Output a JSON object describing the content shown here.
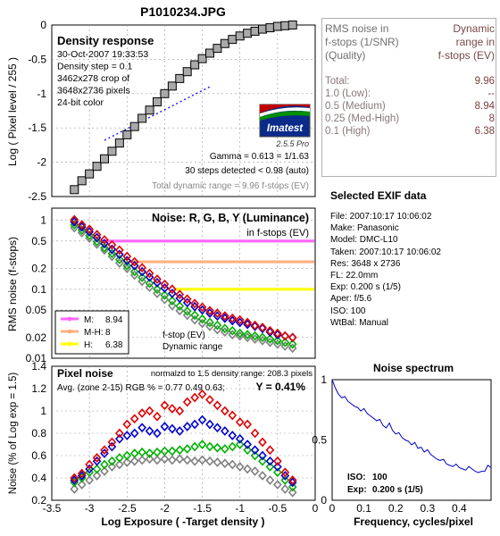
{
  "file_title": "P1010234.JPG",
  "colors": {
    "gray_marker": "#a9a9a9",
    "dotted_line": "#2020ff",
    "noise_r": "#e00000",
    "noise_g": "#00b000",
    "noise_b": "#0000d0",
    "noise_y": "#808080",
    "band_m": "#ff66ff",
    "band_mh": "#ffb080",
    "band_h": "#ffff00",
    "spectrum_line": "#0000c0",
    "title_color": "#800080",
    "brown_text": "#7a4040"
  },
  "rms_table": {
    "header_left": [
      "RMS noise in",
      "f-stops (1/SNR)",
      "(Quality)"
    ],
    "header_right": [
      "Dynamic",
      "range in",
      "f-stops (EV)"
    ],
    "rows": [
      {
        "label": "Total:",
        "value": "9.96"
      },
      {
        "label": "1.0   (Low):",
        "value": "--"
      },
      {
        "label": "0.5   (Medium)",
        "value": "8.94"
      },
      {
        "label": "0.25 (Med-High)",
        "value": "8"
      },
      {
        "label": "0.1   (High)",
        "value": "6.38"
      }
    ]
  },
  "exif": {
    "title": "Selected EXIF data",
    "lines": [
      "File:  2007:10:17 10:06:02",
      "Make:  Panasonic",
      "Model: DMC-L10",
      "Taken: 2007:10:17 10:06:02",
      "Res:   3648 x 2736",
      "FL:  22.0mm",
      "Exp:   0.200 s  (1/5)",
      "Aper:  f/5.6",
      "ISO:   100",
      "WtBal:  Manual"
    ]
  },
  "chart_data": [
    {
      "type": "scatter",
      "panel": "density_response",
      "title": "Density response",
      "info_lines": [
        "30-Oct-2007 19:33:53",
        "Density step = 0.1",
        "3462x278 crop of",
        "3648x2736 pixels",
        "24-bit color"
      ],
      "ylabel": "Log ( Pixel level / 255 )",
      "ylim": [
        -2.5,
        0
      ],
      "yticks": [
        "0",
        "-0.5",
        "-1",
        "-1.5",
        "-2",
        "-2.5"
      ],
      "xlim": [
        -3.5,
        0
      ],
      "x": [
        -3.2,
        -3.1,
        -3.0,
        -2.9,
        -2.8,
        -2.7,
        -2.6,
        -2.5,
        -2.4,
        -2.3,
        -2.2,
        -2.1,
        -2.0,
        -1.9,
        -1.8,
        -1.7,
        -1.6,
        -1.5,
        -1.4,
        -1.3,
        -1.2,
        -1.1,
        -1.0,
        -0.9,
        -0.8,
        -0.7,
        -0.6,
        -0.5,
        -0.4,
        -0.3
      ],
      "values": [
        -2.4,
        -2.27,
        -2.17,
        -2.06,
        -1.95,
        -1.84,
        -1.72,
        -1.6,
        -1.48,
        -1.36,
        -1.24,
        -1.12,
        -1.0,
        -0.89,
        -0.78,
        -0.68,
        -0.58,
        -0.49,
        -0.41,
        -0.34,
        -0.27,
        -0.21,
        -0.16,
        -0.12,
        -0.09,
        -0.06,
        -0.04,
        -0.02,
        -0.01,
        0.0
      ],
      "fit_line": {
        "x": [
          -2.8,
          -1.4
        ],
        "y": [
          -1.68,
          -0.9
        ]
      },
      "imatest_logo": "Imatest",
      "version": "2.5.5  Pro",
      "gamma_text": "Gamma = 0.613 = 1/1.63",
      "steps_text": "30 steps detected < 0.98 (auto)",
      "total_text": "Total dynamic range = 9.96 f-stops (EV)"
    },
    {
      "type": "scatter",
      "panel": "rms_noise",
      "title": "Noise: R, G, B, Y (Luminance)",
      "subtitle": "in f-stops (EV)",
      "ylabel": "RMS noise (f-stops)",
      "scale": "log",
      "ylim": [
        0.01,
        1.5
      ],
      "yticks": [
        "1",
        "0.5",
        "0.2",
        "0.1",
        "0.05",
        "0.02",
        "0.01"
      ],
      "bands": [
        {
          "name": "M:",
          "value": "8.94",
          "level": 0.5,
          "x_start": -2.87
        },
        {
          "name": "M-H:",
          "value": "8",
          "level": 0.25,
          "x_start": -2.55
        },
        {
          "name": "H:",
          "value": "6.38",
          "level": 0.1,
          "x_start": -1.85
        }
      ],
      "legend_line1": "f-stop (EV)",
      "legend_line2": "Dynamic range",
      "x": [
        -3.2,
        -3.1,
        -3.0,
        -2.9,
        -2.8,
        -2.7,
        -2.6,
        -2.5,
        -2.4,
        -2.3,
        -2.2,
        -2.1,
        -2.0,
        -1.9,
        -1.8,
        -1.7,
        -1.6,
        -1.5,
        -1.4,
        -1.3,
        -1.2,
        -1.1,
        -1.0,
        -0.9,
        -0.8,
        -0.7,
        -0.6,
        -0.5,
        -0.4,
        -0.3
      ],
      "series": [
        {
          "name": "R",
          "values": [
            1.02,
            0.86,
            0.74,
            0.62,
            0.52,
            0.44,
            0.37,
            0.3,
            0.25,
            0.205,
            0.17,
            0.14,
            0.118,
            0.1,
            0.084,
            0.072,
            0.062,
            0.055,
            0.049,
            0.045,
            0.041,
            0.038,
            0.036,
            0.033,
            0.03,
            0.028,
            0.025,
            0.023,
            0.021,
            0.02
          ]
        },
        {
          "name": "B",
          "values": [
            0.95,
            0.8,
            0.68,
            0.56,
            0.46,
            0.38,
            0.32,
            0.26,
            0.22,
            0.18,
            0.15,
            0.125,
            0.104,
            0.087,
            0.074,
            0.064,
            0.056,
            0.05,
            0.045,
            0.041,
            0.038,
            0.035,
            0.033,
            0.031,
            0.029,
            0.027,
            0.024,
            0.022,
            0.021,
            0.02
          ]
        },
        {
          "name": "G",
          "values": [
            0.86,
            0.72,
            0.6,
            0.49,
            0.4,
            0.33,
            0.27,
            0.22,
            0.18,
            0.148,
            0.122,
            0.1,
            0.082,
            0.068,
            0.057,
            0.048,
            0.042,
            0.037,
            0.033,
            0.03,
            0.027,
            0.025,
            0.023,
            0.022,
            0.021,
            0.02,
            0.019,
            0.018,
            0.017,
            0.016
          ]
        },
        {
          "name": "Y",
          "values": [
            0.78,
            0.66,
            0.55,
            0.45,
            0.37,
            0.3,
            0.24,
            0.2,
            0.16,
            0.13,
            0.107,
            0.087,
            0.071,
            0.058,
            0.049,
            0.042,
            0.036,
            0.032,
            0.029,
            0.026,
            0.024,
            0.022,
            0.021,
            0.02,
            0.019,
            0.018,
            0.017,
            0.016,
            0.015,
            0.014
          ]
        }
      ]
    },
    {
      "type": "scatter",
      "panel": "pixel_noise",
      "title": "Pixel noise",
      "norm_text": "normalzd to 1.5 density range: 208.3 pixels",
      "avg_text": "Avg. (zone 2-15) RGB % = 0.77  0.49  0.63;",
      "y_text": "Y = 0.41%",
      "ylabel": "Noise (% of Log exp = 1.5)",
      "xlabel": "Log Exposure ( -Target density )",
      "ylim": [
        0.2,
        1.4
      ],
      "xlim": [
        -3.5,
        0
      ],
      "yticks": [
        "0.2",
        "0.4",
        "0.6",
        "0.8",
        "1",
        "1.2",
        "1.4"
      ],
      "xticks": [
        "-3.5",
        "-3",
        "-2.5",
        "-2",
        "-1.5",
        "-1",
        "-0.5",
        "0"
      ],
      "x": [
        -3.2,
        -3.1,
        -3.0,
        -2.9,
        -2.8,
        -2.7,
        -2.6,
        -2.5,
        -2.4,
        -2.3,
        -2.2,
        -2.1,
        -2.0,
        -1.9,
        -1.8,
        -1.7,
        -1.6,
        -1.5,
        -1.4,
        -1.3,
        -1.2,
        -1.1,
        -1.0,
        -0.9,
        -0.8,
        -0.7,
        -0.6,
        -0.5,
        -0.4,
        -0.3
      ],
      "series": [
        {
          "name": "R",
          "values": [
            0.4,
            0.44,
            0.52,
            0.58,
            0.65,
            0.72,
            0.8,
            0.88,
            0.93,
            0.98,
            1.0,
            0.95,
            1.05,
            1.02,
            1.0,
            1.08,
            1.12,
            1.15,
            1.1,
            1.05,
            1.0,
            0.96,
            0.9,
            0.88,
            0.8,
            0.72,
            0.65,
            0.55,
            0.45,
            0.38
          ]
        },
        {
          "name": "B",
          "values": [
            0.38,
            0.42,
            0.48,
            0.55,
            0.62,
            0.68,
            0.75,
            0.78,
            0.8,
            0.85,
            0.82,
            0.8,
            0.86,
            0.84,
            0.82,
            0.86,
            0.88,
            0.92,
            0.88,
            0.85,
            0.82,
            0.78,
            0.75,
            0.7,
            0.65,
            0.6,
            0.55,
            0.5,
            0.42,
            0.36
          ]
        },
        {
          "name": "G",
          "values": [
            0.36,
            0.4,
            0.45,
            0.48,
            0.52,
            0.55,
            0.58,
            0.6,
            0.62,
            0.63,
            0.62,
            0.63,
            0.64,
            0.64,
            0.65,
            0.66,
            0.68,
            0.7,
            0.68,
            0.67,
            0.66,
            0.68,
            0.7,
            0.65,
            0.6,
            0.55,
            0.5,
            0.45,
            0.38,
            0.32
          ]
        },
        {
          "name": "Y",
          "values": [
            0.3,
            0.34,
            0.38,
            0.42,
            0.46,
            0.5,
            0.52,
            0.54,
            0.55,
            0.56,
            0.57,
            0.56,
            0.57,
            0.56,
            0.57,
            0.56,
            0.55,
            0.56,
            0.55,
            0.54,
            0.53,
            0.52,
            0.5,
            0.48,
            0.46,
            0.42,
            0.38,
            0.34,
            0.3,
            0.27
          ]
        }
      ]
    },
    {
      "type": "line",
      "panel": "noise_spectrum",
      "title": "Noise spectrum",
      "xlabel": "Frequency, cycles/pixel",
      "xlim": [
        0,
        0.5
      ],
      "ylim": [
        0,
        1
      ],
      "xticks": [
        "0",
        "0.1",
        "0.2",
        "0.3",
        "0.4"
      ],
      "yticks": [
        "1",
        "0.5",
        "0"
      ],
      "iso_label": "ISO:",
      "iso_value": "100",
      "exp_label": "Exp:",
      "exp_value": "0.200 s  (1/5)",
      "x": [
        0,
        0.01,
        0.02,
        0.03,
        0.04,
        0.05,
        0.06,
        0.07,
        0.08,
        0.09,
        0.1,
        0.11,
        0.12,
        0.13,
        0.14,
        0.15,
        0.16,
        0.17,
        0.18,
        0.19,
        0.2,
        0.21,
        0.22,
        0.23,
        0.24,
        0.25,
        0.26,
        0.27,
        0.28,
        0.29,
        0.3,
        0.31,
        0.32,
        0.33,
        0.34,
        0.35,
        0.36,
        0.37,
        0.38,
        0.39,
        0.4,
        0.41,
        0.42,
        0.43,
        0.44,
        0.45,
        0.46,
        0.47,
        0.48,
        0.49,
        0.5
      ],
      "values": [
        1.0,
        0.93,
        0.88,
        0.85,
        0.86,
        0.82,
        0.8,
        0.78,
        0.77,
        0.74,
        0.76,
        0.72,
        0.7,
        0.68,
        0.66,
        0.67,
        0.62,
        0.6,
        0.64,
        0.58,
        0.55,
        0.56,
        0.52,
        0.5,
        0.49,
        0.46,
        0.48,
        0.43,
        0.44,
        0.4,
        0.42,
        0.38,
        0.36,
        0.34,
        0.33,
        0.34,
        0.3,
        0.29,
        0.28,
        0.3,
        0.27,
        0.26,
        0.25,
        0.28,
        0.26,
        0.24,
        0.23,
        0.24,
        0.24,
        0.29,
        0.27
      ]
    }
  ]
}
